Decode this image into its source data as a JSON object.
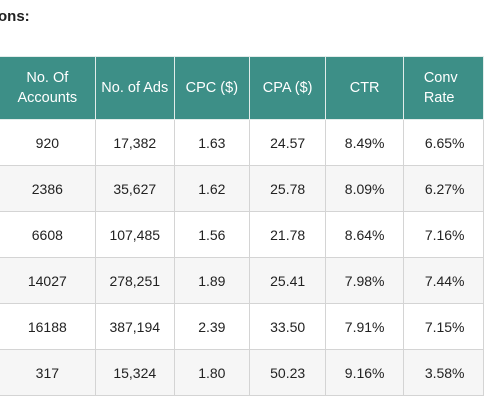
{
  "heading": "ons:",
  "table": {
    "columns": [
      "No. Of Accounts",
      "No. of Ads",
      "CPC ($)",
      "CPA ($)",
      "CTR",
      "Conv Rate"
    ],
    "rows": [
      [
        "920",
        "17,382",
        "1.63",
        "24.57",
        "8.49%",
        "6.65%"
      ],
      [
        "2386",
        "35,627",
        "1.62",
        "25.78",
        "8.09%",
        "6.27%"
      ],
      [
        "6608",
        "107,485",
        "1.56",
        "21.78",
        "8.64%",
        "7.16%"
      ],
      [
        "14027",
        "278,251",
        "1.89",
        "25.41",
        "7.98%",
        "7.44%"
      ],
      [
        "16188",
        "387,194",
        "2.39",
        "33.50",
        "7.91%",
        "7.15%"
      ],
      [
        "317",
        "15,324",
        "1.80",
        "50.23",
        "9.16%",
        "3.58%"
      ]
    ]
  },
  "colors": {
    "header_bg": "#3d8f87",
    "header_text": "#ffffff",
    "row_alt_bg": "#f6f6f6",
    "border": "#d4d4d4"
  }
}
